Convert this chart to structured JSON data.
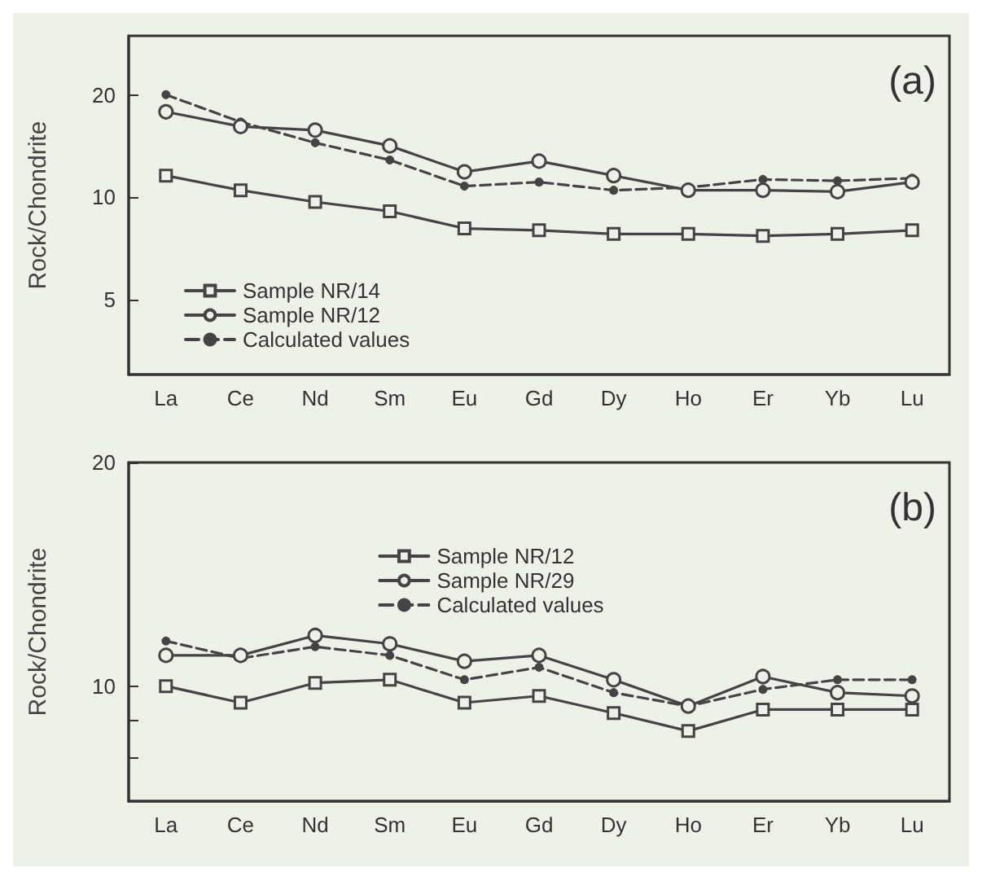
{
  "chart_data": [
    {
      "type": "line",
      "ylabel": "Rock/Chondrite",
      "annotations": [
        "(a)"
      ],
      "log": true,
      "grid": false,
      "legend": "bottom left",
      "categories": [
        "La",
        "Ce",
        "Nd",
        "Sm",
        "Eu",
        "Gd",
        "Dy",
        "Ho",
        "Er",
        "Yb",
        "Lu"
      ],
      "ylim": [
        3,
        30
      ],
      "yticks": [
        5,
        10,
        20
      ],
      "series": [
        {
          "name": "Sample NR/14",
          "color": "#444444",
          "marker": "square",
          "line_style": "solid",
          "values": [
            11.6,
            10.5,
            9.7,
            9.1,
            8.1,
            8.0,
            7.8,
            7.8,
            7.7,
            7.8,
            8.0
          ]
        },
        {
          "name": "Sample NR/12",
          "color": "#444444",
          "marker": "circle",
          "line_style": "solid",
          "values": [
            17.9,
            16.2,
            15.8,
            14.2,
            11.9,
            12.8,
            11.6,
            10.5,
            10.5,
            10.4,
            11.1
          ]
        },
        {
          "name": "Calculated values",
          "color": "#444444",
          "marker": "dot",
          "line_style": "dashed",
          "values": [
            20.1,
            16.7,
            14.5,
            12.9,
            10.8,
            11.1,
            10.5,
            10.7,
            11.3,
            11.2,
            11.4
          ]
        }
      ]
    },
    {
      "type": "line",
      "ylabel": "Rock/Chondrite",
      "annotations": [
        "(b)"
      ],
      "log": true,
      "grid": false,
      "legend": "top",
      "categories": [
        "La",
        "Ce",
        "Nd",
        "Sm",
        "Eu",
        "Gd",
        "Dy",
        "Ho",
        "Er",
        "Yb",
        "Lu"
      ],
      "ylim": [
        7,
        20
      ],
      "yticks": [
        {
          "value": 8,
          "label": null
        },
        {
          "value": 9,
          "label": null
        },
        10,
        20
      ],
      "series": [
        {
          "name": "Sample NR/12",
          "color": "#444444",
          "marker": "square",
          "line_style": "solid",
          "values": [
            10.0,
            9.5,
            10.1,
            10.2,
            9.5,
            9.7,
            9.2,
            8.7,
            9.3,
            9.3,
            9.3
          ]
        },
        {
          "name": "Sample NR/29",
          "color": "#444444",
          "marker": "circle",
          "line_style": "solid",
          "values": [
            11.0,
            11.0,
            11.7,
            11.4,
            10.8,
            11.0,
            10.2,
            9.4,
            10.3,
            9.8,
            9.7
          ]
        },
        {
          "name": "Calculated values",
          "color": "#444444",
          "marker": "dot",
          "line_style": "dashed",
          "values": [
            11.5,
            10.9,
            11.3,
            11.0,
            10.2,
            10.6,
            9.8,
            9.4,
            9.9,
            10.2,
            10.2
          ]
        }
      ]
    }
  ]
}
